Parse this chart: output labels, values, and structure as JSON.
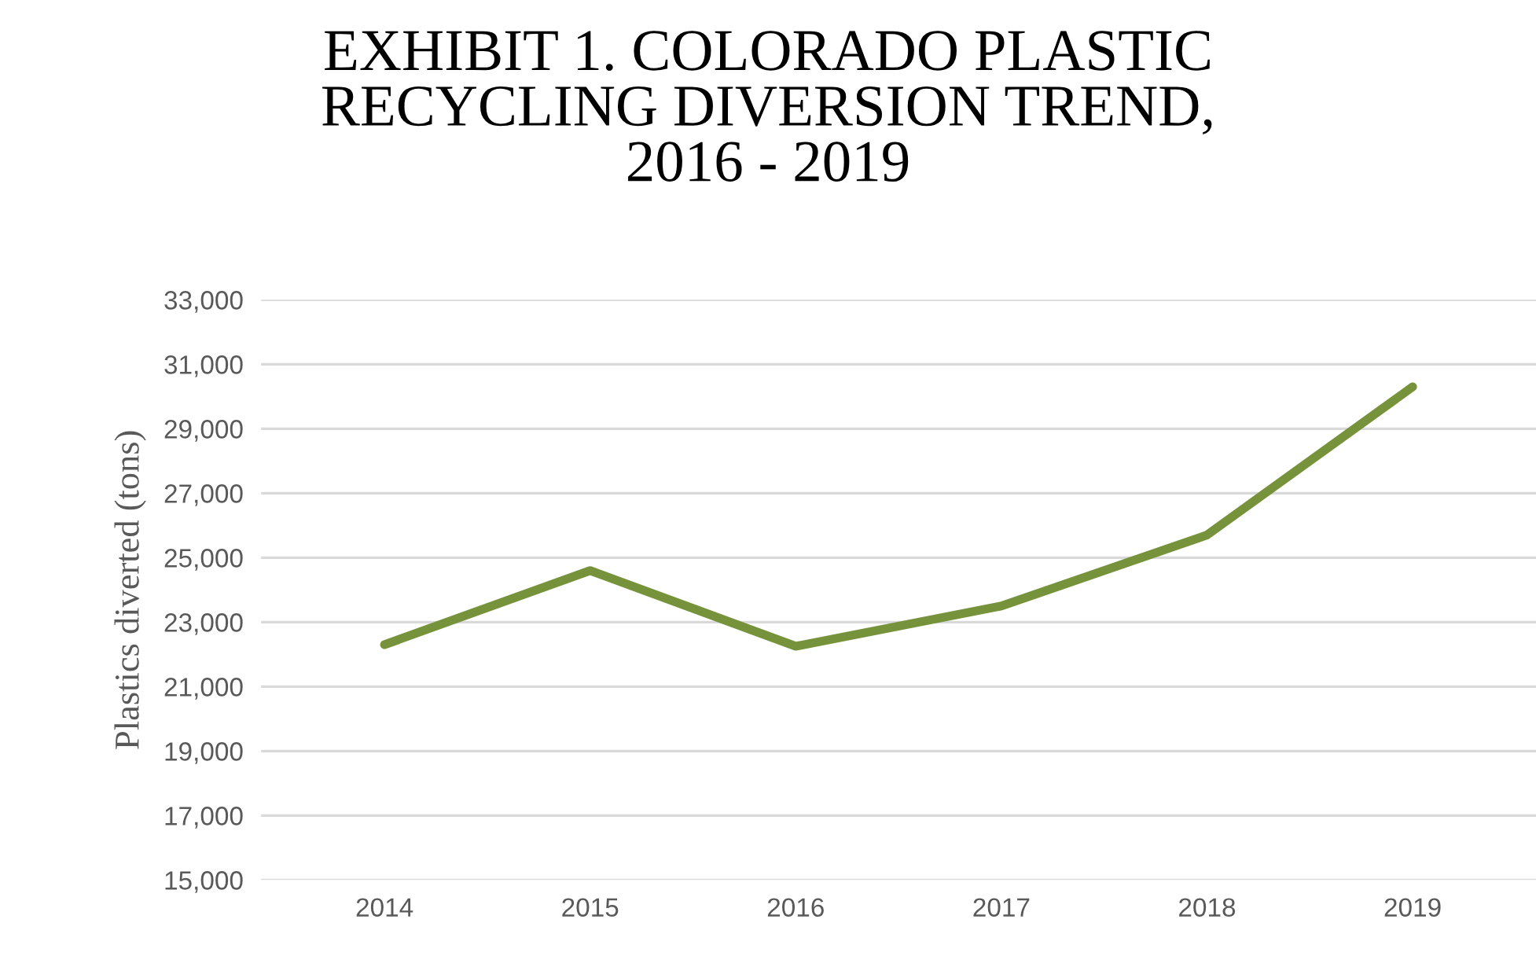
{
  "chart_data": {
    "type": "line",
    "title": "EXHIBIT 1. COLORADO PLASTIC\nRECYCLING DIVERSION TREND,\n2016 - 2019",
    "ylabel": "Plastics diverted (tons)",
    "categories": [
      "2014",
      "2015",
      "2016",
      "2017",
      "2018",
      "2019"
    ],
    "series": [
      {
        "color": "#76933c",
        "values": [
          22300,
          24600,
          22250,
          23500,
          25700,
          30300
        ]
      }
    ],
    "ylim": [
      15000,
      33000
    ],
    "yticks": [
      {
        "value": 15000,
        "label": "15,000"
      },
      {
        "value": 17000,
        "label": "17,000"
      },
      {
        "value": 19000,
        "label": "19,000"
      },
      {
        "value": 21000,
        "label": "21,000"
      },
      {
        "value": 23000,
        "label": "23,000"
      },
      {
        "value": 25000,
        "label": "25,000"
      },
      {
        "value": 27000,
        "label": "27,000"
      },
      {
        "value": 29000,
        "label": "29,000"
      },
      {
        "value": 31000,
        "label": "31,000"
      },
      {
        "value": 33000,
        "label": "33,000"
      }
    ],
    "grid": "y",
    "marker": "none",
    "line_style": "solid"
  }
}
